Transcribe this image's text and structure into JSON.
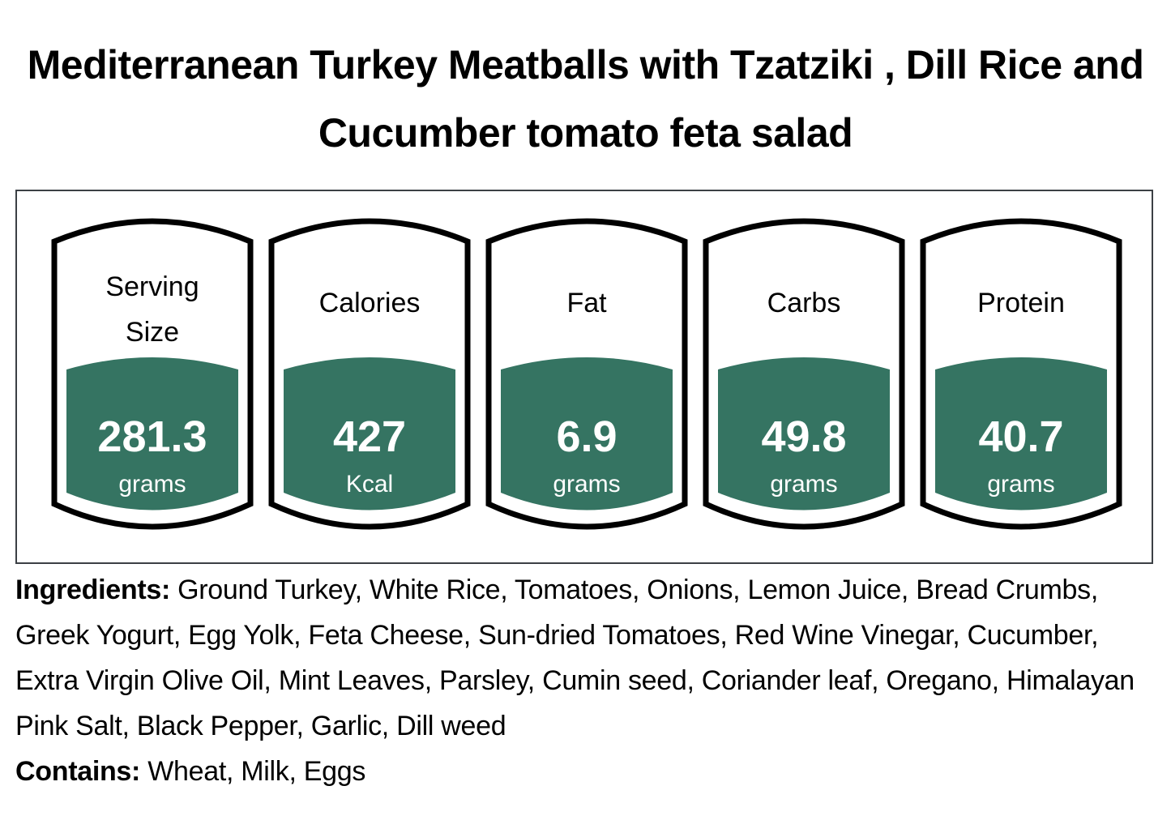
{
  "title": "Mediterranean Turkey Meatballs with Tzatziki , Dill Rice and Cucumber tomato feta salad",
  "colors": {
    "badge_fill": "#357462",
    "badge_outline": "#000000",
    "box_border": "#3c4045"
  },
  "nutrition": [
    {
      "label": "Serving Size",
      "value": "281.3",
      "unit": "grams"
    },
    {
      "label": "Calories",
      "value": "427",
      "unit": "Kcal"
    },
    {
      "label": "Fat",
      "value": "6.9",
      "unit": "grams"
    },
    {
      "label": "Carbs",
      "value": "49.8",
      "unit": "grams"
    },
    {
      "label": "Protein",
      "value": "40.7",
      "unit": "grams"
    }
  ],
  "ingredients": {
    "heading": "Ingredients:",
    "text": " Ground Turkey, White Rice, Tomatoes, Onions, Lemon Juice, Bread Crumbs, Greek Yogurt, Egg Yolk, Feta Cheese, Sun-dried Tomatoes, Red Wine Vinegar, Cucumber, Extra Virgin Olive Oil, Mint Leaves, Parsley, Cumin seed, Coriander leaf, Oregano, Himalayan Pink Salt, Black Pepper, Garlic, Dill weed"
  },
  "contains": {
    "heading": "Contains:",
    "text": " Wheat, Milk, Eggs"
  }
}
